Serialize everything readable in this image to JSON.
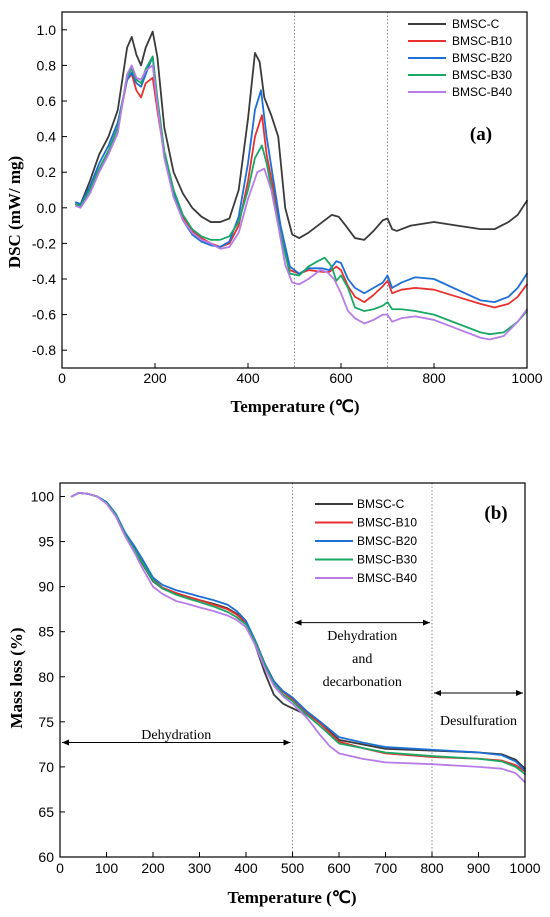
{
  "colors": {
    "BMSC-C": "#3a3a3a",
    "BMSC-B10": "#e8312f",
    "BMSC-B20": "#1c6fd4",
    "BMSC-B30": "#1aa866",
    "BMSC-B40": "#b77ce8"
  },
  "chart_data": [
    {
      "type": "line",
      "panel_label": "(a)",
      "xlabel": "Temperature (℃)",
      "ylabel": "DSC (mW/ mg)",
      "xlim": [
        0,
        1000
      ],
      "ylim": [
        -0.9,
        1.1
      ],
      "xticks": [
        0,
        200,
        400,
        600,
        800,
        1000
      ],
      "yticks": [
        -0.8,
        -0.6,
        -0.4,
        -0.2,
        0.0,
        0.2,
        0.4,
        0.6,
        0.8,
        1.0
      ],
      "ytick_labels": [
        "-0.8",
        "-0.6",
        "-0.4",
        "-0.2",
        "0.0",
        "0.2",
        "0.4",
        "0.6",
        "0.8",
        "1.0"
      ],
      "vlines": [
        500,
        700
      ],
      "legend_position": "top-right",
      "series": [
        {
          "name": "BMSC-C",
          "x": [
            30,
            40,
            60,
            80,
            100,
            120,
            140,
            150,
            160,
            170,
            180,
            195,
            205,
            220,
            240,
            260,
            280,
            300,
            320,
            340,
            360,
            380,
            400,
            415,
            425,
            435,
            450,
            465,
            480,
            495,
            510,
            530,
            560,
            580,
            595,
            610,
            630,
            650,
            670,
            690,
            700,
            710,
            720,
            750,
            800,
            850,
            900,
            930,
            960,
            980,
            1000
          ],
          "y": [
            0.03,
            0.02,
            0.15,
            0.3,
            0.4,
            0.55,
            0.9,
            0.96,
            0.86,
            0.8,
            0.9,
            0.99,
            0.85,
            0.45,
            0.2,
            0.08,
            0.0,
            -0.05,
            -0.08,
            -0.08,
            -0.06,
            0.1,
            0.5,
            0.87,
            0.82,
            0.62,
            0.52,
            0.4,
            0.0,
            -0.15,
            -0.17,
            -0.14,
            -0.08,
            -0.04,
            -0.05,
            -0.1,
            -0.17,
            -0.18,
            -0.13,
            -0.07,
            -0.06,
            -0.12,
            -0.13,
            -0.1,
            -0.08,
            -0.1,
            -0.12,
            -0.12,
            -0.08,
            -0.04,
            0.04
          ]
        },
        {
          "name": "BMSC-B10",
          "x": [
            30,
            40,
            60,
            80,
            100,
            120,
            140,
            150,
            160,
            170,
            180,
            195,
            205,
            220,
            240,
            260,
            280,
            300,
            320,
            340,
            360,
            380,
            400,
            415,
            430,
            440,
            455,
            470,
            490,
            510,
            530,
            560,
            575,
            590,
            600,
            615,
            630,
            650,
            670,
            690,
            700,
            710,
            730,
            760,
            800,
            850,
            900,
            930,
            960,
            980,
            1000
          ],
          "y": [
            0.02,
            0.01,
            0.1,
            0.22,
            0.32,
            0.45,
            0.72,
            0.75,
            0.66,
            0.62,
            0.7,
            0.73,
            0.55,
            0.3,
            0.1,
            -0.05,
            -0.13,
            -0.17,
            -0.2,
            -0.22,
            -0.2,
            -0.1,
            0.15,
            0.4,
            0.52,
            0.3,
            0.1,
            -0.15,
            -0.35,
            -0.37,
            -0.35,
            -0.36,
            -0.36,
            -0.33,
            -0.35,
            -0.44,
            -0.5,
            -0.53,
            -0.49,
            -0.44,
            -0.41,
            -0.48,
            -0.46,
            -0.45,
            -0.46,
            -0.5,
            -0.54,
            -0.56,
            -0.54,
            -0.5,
            -0.43
          ]
        },
        {
          "name": "BMSC-B20",
          "x": [
            30,
            40,
            60,
            80,
            100,
            120,
            140,
            150,
            160,
            170,
            180,
            195,
            205,
            220,
            240,
            260,
            280,
            300,
            320,
            340,
            360,
            380,
            400,
            415,
            428,
            440,
            455,
            470,
            490,
            510,
            530,
            560,
            575,
            590,
            600,
            615,
            630,
            650,
            670,
            690,
            700,
            710,
            730,
            760,
            800,
            850,
            900,
            930,
            960,
            980,
            1000
          ],
          "y": [
            0.03,
            0.02,
            0.12,
            0.25,
            0.35,
            0.48,
            0.72,
            0.76,
            0.7,
            0.68,
            0.75,
            0.85,
            0.6,
            0.3,
            0.08,
            -0.07,
            -0.15,
            -0.19,
            -0.21,
            -0.22,
            -0.19,
            -0.05,
            0.25,
            0.55,
            0.66,
            0.4,
            0.15,
            -0.1,
            -0.33,
            -0.37,
            -0.34,
            -0.34,
            -0.35,
            -0.3,
            -0.31,
            -0.4,
            -0.45,
            -0.48,
            -0.45,
            -0.42,
            -0.38,
            -0.45,
            -0.42,
            -0.39,
            -0.4,
            -0.46,
            -0.52,
            -0.53,
            -0.5,
            -0.45,
            -0.37
          ]
        },
        {
          "name": "BMSC-B30",
          "x": [
            30,
            40,
            60,
            80,
            100,
            120,
            140,
            150,
            160,
            170,
            180,
            195,
            205,
            220,
            240,
            260,
            280,
            300,
            320,
            340,
            360,
            380,
            400,
            415,
            430,
            440,
            455,
            470,
            490,
            510,
            530,
            550,
            565,
            580,
            590,
            600,
            615,
            630,
            650,
            670,
            690,
            700,
            710,
            730,
            760,
            800,
            850,
            900,
            920,
            950,
            980,
            1000
          ],
          "y": [
            0.02,
            0.01,
            0.1,
            0.22,
            0.32,
            0.45,
            0.74,
            0.78,
            0.72,
            0.7,
            0.78,
            0.85,
            0.62,
            0.32,
            0.1,
            -0.04,
            -0.12,
            -0.16,
            -0.18,
            -0.18,
            -0.16,
            -0.08,
            0.1,
            0.28,
            0.35,
            0.25,
            0.05,
            -0.15,
            -0.37,
            -0.38,
            -0.33,
            -0.3,
            -0.28,
            -0.33,
            -0.41,
            -0.38,
            -0.45,
            -0.56,
            -0.58,
            -0.57,
            -0.55,
            -0.53,
            -0.57,
            -0.57,
            -0.58,
            -0.6,
            -0.65,
            -0.7,
            -0.71,
            -0.7,
            -0.64,
            -0.58
          ]
        },
        {
          "name": "BMSC-B40",
          "x": [
            30,
            40,
            60,
            80,
            100,
            120,
            140,
            150,
            160,
            170,
            180,
            195,
            205,
            220,
            240,
            260,
            280,
            300,
            320,
            340,
            360,
            380,
            400,
            420,
            435,
            450,
            465,
            480,
            495,
            510,
            530,
            555,
            570,
            585,
            600,
            615,
            630,
            650,
            670,
            690,
            700,
            710,
            730,
            760,
            800,
            850,
            900,
            920,
            950,
            980,
            1000
          ],
          "y": [
            0.01,
            0.0,
            0.08,
            0.2,
            0.3,
            0.42,
            0.75,
            0.8,
            0.73,
            0.72,
            0.77,
            0.8,
            0.58,
            0.28,
            0.06,
            -0.07,
            -0.14,
            -0.18,
            -0.2,
            -0.23,
            -0.22,
            -0.14,
            0.05,
            0.2,
            0.22,
            0.1,
            -0.1,
            -0.32,
            -0.42,
            -0.43,
            -0.4,
            -0.35,
            -0.36,
            -0.4,
            -0.48,
            -0.58,
            -0.62,
            -0.65,
            -0.63,
            -0.6,
            -0.6,
            -0.64,
            -0.62,
            -0.61,
            -0.63,
            -0.68,
            -0.73,
            -0.74,
            -0.72,
            -0.64,
            -0.57
          ]
        }
      ]
    },
    {
      "type": "line",
      "panel_label": "(b)",
      "xlabel": "Temperature (℃)",
      "ylabel": "Mass loss (%)",
      "xlim": [
        0,
        1000
      ],
      "ylim": [
        60,
        101.5
      ],
      "xticks": [
        0,
        100,
        200,
        300,
        400,
        500,
        600,
        700,
        800,
        900,
        1000
      ],
      "yticks": [
        60,
        65,
        70,
        75,
        80,
        85,
        90,
        95,
        100
      ],
      "vlines": [
        500,
        800
      ],
      "legend_position": "top-center",
      "annotations": [
        {
          "lines": [
            "Dehydration"
          ],
          "x_range": [
            0,
            500
          ],
          "arrow_y": 72.7
        },
        {
          "lines": [
            "Dehydration",
            "and",
            "decarbonation"
          ],
          "x_range": [
            500,
            800
          ],
          "arrow_y": 86.0
        },
        {
          "lines": [
            "Desulfuration"
          ],
          "x_range": [
            800,
            1000
          ],
          "arrow_y": 78.2
        }
      ],
      "series": [
        {
          "name": "BMSC-C",
          "x": [
            25,
            40,
            60,
            80,
            100,
            120,
            140,
            160,
            180,
            200,
            220,
            250,
            280,
            300,
            330,
            360,
            380,
            400,
            420,
            440,
            460,
            480,
            500,
            550,
            600,
            650,
            700,
            800,
            900,
            950,
            980,
            1000
          ],
          "y": [
            100.0,
            100.4,
            100.3,
            100.0,
            99.3,
            98.0,
            95.8,
            94.0,
            92.3,
            90.6,
            89.8,
            89.2,
            88.8,
            88.5,
            88.1,
            87.6,
            87.0,
            86.0,
            83.5,
            80.5,
            78.0,
            77.0,
            76.5,
            75.3,
            73.0,
            72.5,
            72.0,
            71.8,
            71.6,
            71.4,
            70.8,
            69.8
          ]
        },
        {
          "name": "BMSC-B10",
          "x": [
            25,
            40,
            60,
            80,
            100,
            120,
            140,
            160,
            180,
            200,
            220,
            250,
            280,
            300,
            330,
            360,
            380,
            400,
            420,
            440,
            460,
            480,
            500,
            530,
            560,
            600,
            650,
            700,
            800,
            900,
            950,
            980,
            1000
          ],
          "y": [
            100.0,
            100.4,
            100.3,
            100.0,
            99.3,
            98.0,
            95.9,
            94.2,
            92.5,
            90.8,
            89.9,
            89.3,
            88.8,
            88.5,
            88.0,
            87.5,
            86.9,
            86.0,
            84.0,
            81.5,
            79.5,
            78.3,
            77.5,
            76.0,
            74.8,
            72.8,
            72.1,
            71.5,
            71.1,
            70.9,
            70.7,
            70.2,
            69.5
          ]
        },
        {
          "name": "BMSC-B20",
          "x": [
            25,
            40,
            60,
            80,
            100,
            120,
            140,
            160,
            180,
            200,
            220,
            250,
            280,
            300,
            330,
            360,
            380,
            400,
            420,
            440,
            460,
            480,
            500,
            530,
            560,
            600,
            650,
            700,
            800,
            900,
            950,
            980,
            1000
          ],
          "y": [
            100.0,
            100.4,
            100.3,
            100.0,
            99.4,
            98.1,
            96.0,
            94.5,
            92.8,
            91.0,
            90.2,
            89.6,
            89.2,
            88.9,
            88.5,
            88.0,
            87.3,
            86.2,
            84.0,
            81.5,
            79.5,
            78.4,
            77.7,
            76.2,
            75.0,
            73.3,
            72.7,
            72.2,
            71.9,
            71.6,
            71.3,
            70.6,
            69.6
          ]
        },
        {
          "name": "BMSC-B30",
          "x": [
            25,
            40,
            60,
            80,
            100,
            120,
            140,
            160,
            180,
            200,
            220,
            250,
            280,
            300,
            330,
            360,
            380,
            400,
            420,
            440,
            460,
            480,
            500,
            530,
            560,
            600,
            650,
            700,
            800,
            900,
            950,
            980,
            1000
          ],
          "y": [
            100.0,
            100.4,
            100.3,
            100.0,
            99.3,
            98.0,
            95.8,
            94.1,
            92.4,
            90.7,
            89.8,
            89.1,
            88.6,
            88.3,
            87.8,
            87.2,
            86.6,
            85.8,
            83.8,
            81.3,
            79.2,
            78.0,
            77.3,
            75.8,
            74.5,
            72.6,
            72.1,
            71.6,
            71.2,
            70.9,
            70.6,
            70.0,
            69.2
          ]
        },
        {
          "name": "BMSC-B40",
          "x": [
            25,
            40,
            60,
            80,
            100,
            120,
            140,
            160,
            180,
            200,
            220,
            250,
            280,
            300,
            330,
            360,
            380,
            400,
            420,
            440,
            460,
            480,
            500,
            530,
            560,
            580,
            600,
            650,
            700,
            800,
            900,
            950,
            980,
            1000
          ],
          "y": [
            100.0,
            100.4,
            100.3,
            100.0,
            99.2,
            97.8,
            95.6,
            93.8,
            91.8,
            90.0,
            89.2,
            88.4,
            88.0,
            87.7,
            87.3,
            86.8,
            86.3,
            85.5,
            83.5,
            81.0,
            79.0,
            77.8,
            77.0,
            75.5,
            73.5,
            72.3,
            71.5,
            70.9,
            70.5,
            70.3,
            70.0,
            69.8,
            69.3,
            68.3
          ]
        }
      ]
    }
  ]
}
